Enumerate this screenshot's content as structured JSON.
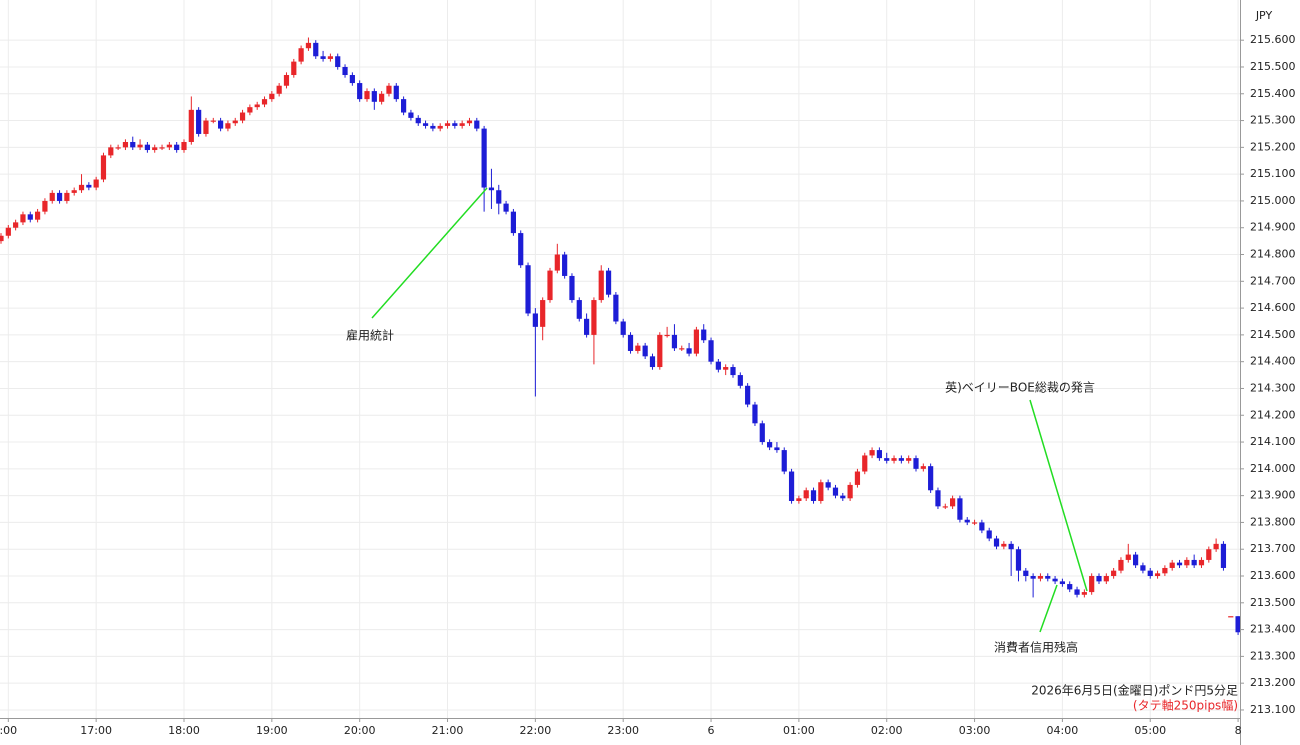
{
  "chart_data": {
    "type": "candlestick",
    "currency": "JPY",
    "up_color": "#e8262a",
    "down_color": "#1d1dd6",
    "grid": true,
    "ylim": [
      213.07,
      215.75
    ],
    "yticks": [
      {
        "value": 213.1,
        "label": "213.100"
      },
      {
        "value": 213.2,
        "label": "213.200"
      },
      {
        "value": 213.3,
        "label": "213.300"
      },
      {
        "value": 213.4,
        "label": "213.400"
      },
      {
        "value": 213.5,
        "label": "213.500"
      },
      {
        "value": 213.6,
        "label": "213.600"
      },
      {
        "value": 213.7,
        "label": "213.700"
      },
      {
        "value": 213.8,
        "label": "213.800"
      },
      {
        "value": 213.9,
        "label": "213.900"
      },
      {
        "value": 214.0,
        "label": "214.000"
      },
      {
        "value": 214.1,
        "label": "214.100"
      },
      {
        "value": 214.2,
        "label": "214.200"
      },
      {
        "value": 214.3,
        "label": "214.300"
      },
      {
        "value": 214.4,
        "label": "214.400"
      },
      {
        "value": 214.5,
        "label": "214.500"
      },
      {
        "value": 214.6,
        "label": "214.600"
      },
      {
        "value": 214.7,
        "label": "214.700"
      },
      {
        "value": 214.8,
        "label": "214.800"
      },
      {
        "value": 214.9,
        "label": "214.900"
      },
      {
        "value": 215.0,
        "label": "215.000"
      },
      {
        "value": 215.1,
        "label": "215.100"
      },
      {
        "value": 215.2,
        "label": "215.200"
      },
      {
        "value": 215.3,
        "label": "215.300"
      },
      {
        "value": 215.4,
        "label": "215.400"
      },
      {
        "value": 215.5,
        "label": "215.500"
      },
      {
        "value": 215.6,
        "label": "215.600"
      }
    ],
    "xticks": [
      {
        "value": 1,
        "label": ":00"
      },
      {
        "value": 13,
        "label": "17:00"
      },
      {
        "value": 25,
        "label": "18:00"
      },
      {
        "value": 37,
        "label": "19:00"
      },
      {
        "value": 49,
        "label": "20:00"
      },
      {
        "value": 61,
        "label": "21:00"
      },
      {
        "value": 73,
        "label": "22:00"
      },
      {
        "value": 85,
        "label": "23:00"
      },
      {
        "value": 97,
        "label": "6"
      },
      {
        "value": 109,
        "label": "01:00"
      },
      {
        "value": 121,
        "label": "02:00"
      },
      {
        "value": 133,
        "label": "03:00"
      },
      {
        "value": 145,
        "label": "04:00"
      },
      {
        "value": 157,
        "label": "05:00"
      },
      {
        "value": 169,
        "label": "8"
      }
    ],
    "open": [
      214.85,
      214.87,
      214.9,
      214.92,
      214.95,
      214.93,
      214.96,
      215.0,
      215.03,
      215.0,
      215.03,
      215.04,
      215.06,
      215.05,
      215.08,
      215.17,
      215.2,
      215.2,
      215.22,
      215.2,
      215.21,
      215.19,
      215.2,
      215.2,
      215.21,
      215.19,
      215.22,
      215.34,
      215.25,
      215.3,
      215.3,
      215.27,
      215.29,
      215.3,
      215.33,
      215.35,
      215.36,
      215.38,
      215.4,
      215.43,
      215.47,
      215.52,
      215.57,
      215.59,
      215.54,
      215.53,
      215.54,
      215.5,
      215.47,
      215.44,
      215.38,
      215.41,
      215.37,
      215.4,
      215.43,
      215.38,
      215.33,
      215.31,
      215.29,
      215.28,
      215.27,
      215.28,
      215.29,
      215.28,
      215.29,
      215.3,
      215.27,
      215.05,
      215.04,
      214.99,
      214.96,
      214.88,
      214.76,
      214.58,
      214.53,
      214.63,
      214.74,
      214.8,
      214.72,
      214.63,
      214.56,
      214.5,
      214.63,
      214.74,
      214.65,
      214.55,
      214.5,
      214.44,
      214.46,
      214.42,
      214.38,
      214.5,
      214.5,
      214.45,
      214.45,
      214.43,
      214.52,
      214.48,
      214.4,
      214.37,
      214.38,
      214.35,
      214.31,
      214.24,
      214.17,
      214.1,
      214.08,
      214.07,
      213.99,
      213.88,
      213.89,
      213.92,
      213.88,
      213.95,
      213.93,
      213.9,
      213.89,
      213.94,
      213.99,
      214.05,
      214.07,
      214.04,
      214.03,
      214.04,
      214.03,
      214.04,
      214.0,
      214.01,
      213.92,
      213.86,
      213.86,
      213.89,
      213.81,
      213.8,
      213.8,
      213.77,
      213.74,
      213.71,
      213.72,
      213.7,
      213.62,
      213.6,
      213.59,
      213.6,
      213.59,
      213.58,
      213.57,
      213.55,
      213.53,
      213.54,
      213.6,
      213.58,
      213.6,
      213.62,
      213.66,
      213.68,
      213.64,
      213.62,
      213.6,
      213.61,
      213.63,
      213.65,
      213.64,
      213.66,
      213.64,
      213.66,
      213.7,
      213.72,
      213.45,
      213.45
    ],
    "high": [
      214.88,
      214.91,
      214.93,
      214.96,
      214.96,
      214.97,
      215.01,
      215.04,
      215.04,
      215.04,
      215.05,
      215.1,
      215.07,
      215.09,
      215.18,
      215.21,
      215.21,
      215.23,
      215.24,
      215.23,
      215.22,
      215.21,
      215.21,
      215.22,
      215.22,
      215.23,
      215.39,
      215.35,
      215.31,
      215.31,
      215.31,
      215.3,
      215.31,
      215.34,
      215.36,
      215.37,
      215.39,
      215.41,
      215.44,
      215.48,
      215.53,
      215.58,
      215.61,
      215.6,
      215.56,
      215.55,
      215.55,
      215.51,
      215.48,
      215.45,
      215.42,
      215.42,
      215.41,
      215.44,
      215.44,
      215.39,
      215.34,
      215.32,
      215.3,
      215.29,
      215.29,
      215.3,
      215.3,
      215.3,
      215.31,
      215.31,
      215.28,
      215.12,
      215.06,
      215.0,
      214.97,
      214.89,
      214.77,
      214.6,
      214.64,
      214.75,
      214.84,
      214.81,
      214.73,
      214.64,
      214.58,
      214.64,
      214.76,
      214.75,
      214.66,
      214.56,
      214.51,
      214.47,
      214.47,
      214.43,
      214.51,
      214.53,
      214.54,
      214.46,
      214.47,
      214.53,
      214.54,
      214.49,
      214.41,
      214.39,
      214.39,
      214.36,
      214.32,
      214.25,
      214.18,
      214.11,
      214.1,
      214.08,
      214.0,
      213.9,
      213.93,
      213.93,
      213.96,
      213.96,
      213.94,
      213.91,
      213.95,
      214.0,
      214.06,
      214.08,
      214.08,
      214.06,
      214.05,
      214.05,
      214.05,
      214.05,
      214.02,
      214.02,
      213.93,
      213.87,
      213.9,
      213.9,
      213.82,
      213.81,
      213.81,
      213.78,
      213.75,
      213.73,
      213.73,
      213.71,
      213.63,
      213.61,
      213.61,
      213.61,
      213.6,
      213.59,
      213.58,
      213.56,
      213.55,
      213.61,
      213.61,
      213.61,
      213.63,
      213.67,
      213.72,
      213.69,
      213.65,
      213.63,
      213.62,
      213.64,
      213.66,
      213.66,
      213.67,
      213.68,
      213.67,
      213.71,
      213.74,
      213.73,
      213.45,
      213.45
    ],
    "low": [
      214.84,
      214.86,
      214.89,
      214.91,
      214.92,
      214.92,
      214.95,
      214.99,
      214.99,
      214.99,
      215.02,
      215.03,
      215.04,
      215.04,
      215.07,
      215.16,
      215.19,
      215.19,
      215.19,
      215.19,
      215.18,
      215.18,
      215.19,
      215.19,
      215.18,
      215.18,
      215.21,
      215.24,
      215.24,
      215.29,
      215.26,
      215.26,
      215.28,
      215.29,
      215.32,
      215.34,
      215.35,
      215.37,
      215.39,
      215.42,
      215.46,
      215.51,
      215.56,
      215.53,
      215.52,
      215.52,
      215.49,
      215.46,
      215.43,
      215.37,
      215.37,
      215.34,
      215.36,
      215.39,
      215.37,
      215.32,
      215.3,
      215.28,
      215.27,
      215.26,
      215.26,
      215.27,
      215.27,
      215.27,
      215.28,
      215.26,
      214.96,
      214.97,
      214.95,
      214.95,
      214.87,
      214.75,
      214.57,
      214.27,
      214.48,
      214.62,
      214.73,
      214.71,
      214.62,
      214.55,
      214.49,
      214.39,
      214.62,
      214.64,
      214.54,
      214.49,
      214.43,
      214.43,
      214.41,
      214.37,
      214.37,
      214.49,
      214.44,
      214.44,
      214.42,
      214.42,
      214.47,
      214.39,
      214.36,
      214.35,
      214.34,
      214.3,
      214.23,
      214.16,
      214.09,
      214.07,
      214.06,
      213.98,
      213.87,
      213.87,
      213.88,
      213.87,
      213.87,
      213.92,
      213.89,
      213.88,
      213.88,
      213.93,
      213.98,
      214.04,
      214.03,
      214.02,
      214.02,
      214.02,
      214.02,
      213.99,
      213.99,
      213.91,
      213.85,
      213.85,
      213.85,
      213.8,
      213.79,
      213.79,
      213.76,
      213.73,
      213.7,
      213.7,
      213.6,
      213.58,
      213.58,
      213.52,
      213.58,
      213.58,
      213.57,
      213.56,
      213.54,
      213.52,
      213.52,
      213.53,
      213.57,
      213.57,
      213.59,
      213.61,
      213.65,
      213.63,
      213.61,
      213.59,
      213.59,
      213.6,
      213.62,
      213.63,
      213.63,
      213.63,
      213.63,
      213.65,
      213.69,
      213.62,
      213.45,
      213.38
    ],
    "close": [
      214.87,
      214.9,
      214.92,
      214.95,
      214.93,
      214.96,
      215.0,
      215.03,
      215.0,
      215.03,
      215.04,
      215.06,
      215.05,
      215.08,
      215.17,
      215.2,
      215.2,
      215.22,
      215.2,
      215.21,
      215.19,
      215.2,
      215.2,
      215.21,
      215.19,
      215.22,
      215.34,
      215.25,
      215.3,
      215.3,
      215.27,
      215.29,
      215.3,
      215.33,
      215.35,
      215.36,
      215.38,
      215.4,
      215.43,
      215.47,
      215.52,
      215.57,
      215.59,
      215.54,
      215.53,
      215.54,
      215.5,
      215.47,
      215.44,
      215.38,
      215.41,
      215.37,
      215.4,
      215.43,
      215.38,
      215.33,
      215.31,
      215.29,
      215.28,
      215.27,
      215.28,
      215.29,
      215.28,
      215.29,
      215.3,
      215.27,
      215.05,
      215.04,
      214.99,
      214.96,
      214.88,
      214.76,
      214.58,
      214.53,
      214.63,
      214.74,
      214.8,
      214.72,
      214.63,
      214.56,
      214.5,
      214.63,
      214.74,
      214.65,
      214.55,
      214.5,
      214.44,
      214.46,
      214.42,
      214.38,
      214.5,
      214.5,
      214.45,
      214.45,
      214.43,
      214.52,
      214.48,
      214.4,
      214.37,
      214.38,
      214.35,
      214.31,
      214.24,
      214.17,
      214.1,
      214.08,
      214.07,
      213.99,
      213.88,
      213.89,
      213.92,
      213.88,
      213.95,
      213.93,
      213.9,
      213.89,
      213.94,
      213.99,
      214.05,
      214.07,
      214.04,
      214.03,
      214.04,
      214.03,
      214.04,
      214.0,
      214.01,
      213.92,
      213.86,
      213.86,
      213.89,
      213.81,
      213.8,
      213.8,
      213.77,
      213.74,
      213.71,
      213.72,
      213.7,
      213.62,
      213.6,
      213.59,
      213.6,
      213.59,
      213.58,
      213.57,
      213.55,
      213.53,
      213.54,
      213.6,
      213.58,
      213.6,
      213.62,
      213.66,
      213.68,
      213.64,
      213.62,
      213.6,
      213.61,
      213.63,
      213.65,
      213.64,
      213.66,
      213.64,
      213.66,
      213.7,
      213.72,
      213.63,
      213.45,
      213.39
    ],
    "annotations": [
      "雇用統計",
      "英)ベイリーBOE総裁の発言",
      "消費者信用残高"
    ],
    "caption": "2026年6月5日(金曜日)ポンド円5分足",
    "caption_note": "(タテ軸250pips幅)"
  }
}
